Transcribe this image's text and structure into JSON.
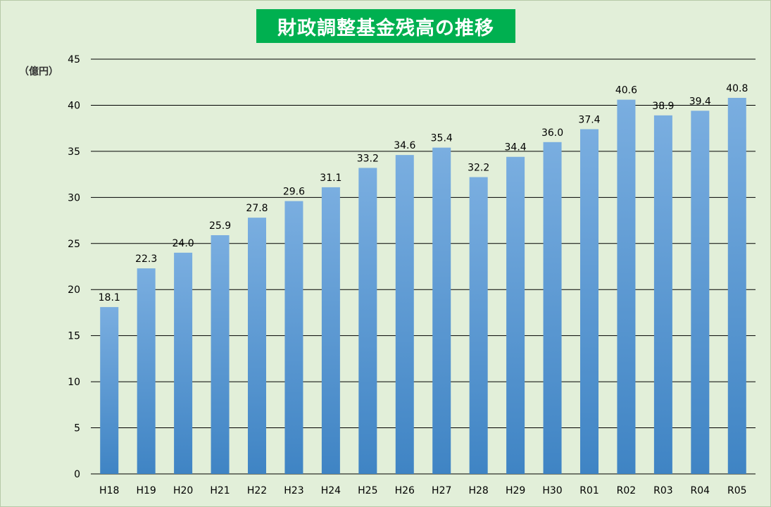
{
  "chart_data": {
    "type": "bar",
    "title": "財政調整基金残高の推移",
    "ylabel": "（億円）",
    "xlabel": "",
    "ylim": [
      0,
      45
    ],
    "yticks": [
      0,
      5,
      10,
      15,
      20,
      25,
      30,
      35,
      40,
      45
    ],
    "grid": true,
    "legend": "none",
    "categories": [
      "H18",
      "H19",
      "H20",
      "H21",
      "H22",
      "H23",
      "H24",
      "H25",
      "H26",
      "H27",
      "H28",
      "H29",
      "H30",
      "R01",
      "R02",
      "R03",
      "R04",
      "R05"
    ],
    "values": [
      18.1,
      22.3,
      24.0,
      25.9,
      27.8,
      29.6,
      31.1,
      33.2,
      34.6,
      35.4,
      32.2,
      34.4,
      36.0,
      37.4,
      40.6,
      38.9,
      39.4,
      40.8
    ],
    "data_labels": [
      "18.1",
      "22.3",
      "24.0",
      "25.9",
      "27.8",
      "29.6",
      "31.1",
      "33.2",
      "34.6",
      "35.4",
      "32.2",
      "34.4",
      "36.0",
      "37.4",
      "40.6",
      "38.9",
      "39.4",
      "40.8"
    ],
    "colors": {
      "bar_top": "#7aaee0",
      "bar_bottom": "#3f84c4",
      "background": "#e2efd9",
      "title_bg": "#00b050",
      "title_text": "#ffffff",
      "grid": "#000000"
    }
  }
}
